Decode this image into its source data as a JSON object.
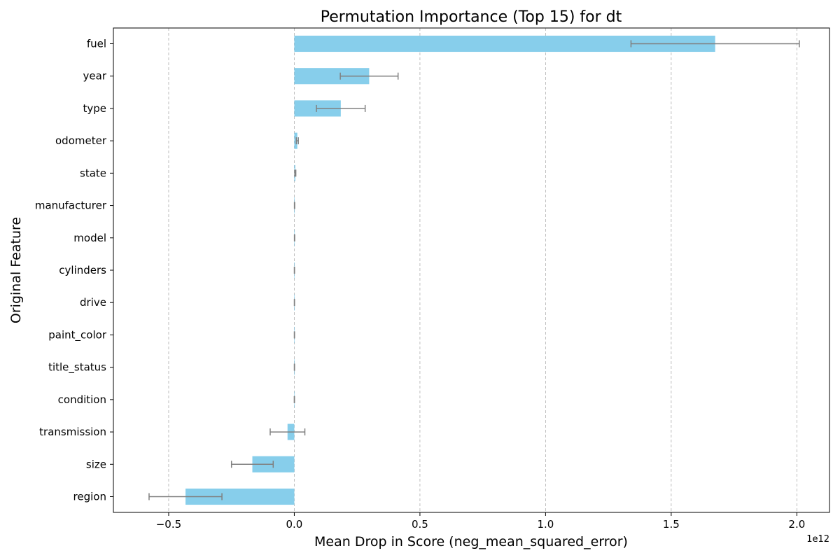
{
  "chart_data": {
    "type": "bar",
    "orientation": "horizontal",
    "title": "Permutation Importance (Top 15) for dt",
    "xlabel": "Mean Drop in Score (neg_mean_squared_error)",
    "ylabel": "Original Feature",
    "x_offset_label": "1e12",
    "x_scale_factor": 1000000000000.0,
    "xlim": [
      -0.72,
      2.13
    ],
    "xticks": [
      -0.5,
      0.0,
      0.5,
      1.0,
      1.5,
      2.0
    ],
    "xtick_labels": [
      "−0.5",
      "0.0",
      "0.5",
      "1.0",
      "1.5",
      "2.0"
    ],
    "grid": "vertical dashed",
    "categories": [
      "fuel",
      "year",
      "type",
      "odometer",
      "state",
      "manufacturer",
      "model",
      "cylinders",
      "drive",
      "paint_color",
      "title_status",
      "condition",
      "transmission",
      "size",
      "region"
    ],
    "values": [
      1.675,
      0.298,
      0.185,
      0.012,
      0.004,
      0.001,
      0.001,
      0.0005,
      0.0005,
      0.0005,
      0.0005,
      0.0003,
      -0.027,
      -0.167,
      -0.433
    ],
    "errors": [
      0.335,
      0.115,
      0.097,
      0.004,
      0.002,
      0.0005,
      0.0005,
      0.0003,
      0.0003,
      0.0003,
      0.0003,
      0.0002,
      0.069,
      0.083,
      0.145
    ],
    "bar_color": "#87ceeb",
    "error_color": "#808080"
  }
}
